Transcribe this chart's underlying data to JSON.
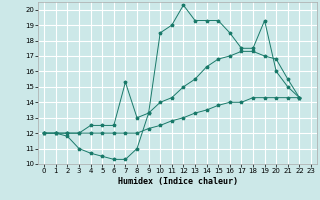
{
  "xlabel": "Humidex (Indice chaleur)",
  "bg_color": "#cce8e8",
  "grid_color": "#ffffff",
  "line_color": "#1a7a6a",
  "xlim": [
    -0.5,
    23.5
  ],
  "ylim": [
    10,
    20.5
  ],
  "xticks": [
    0,
    1,
    2,
    3,
    4,
    5,
    6,
    7,
    8,
    9,
    10,
    11,
    12,
    13,
    14,
    15,
    16,
    17,
    18,
    19,
    20,
    21,
    22,
    23
  ],
  "yticks": [
    10,
    11,
    12,
    13,
    14,
    15,
    16,
    17,
    18,
    19,
    20
  ],
  "line1_x": [
    0,
    1,
    2,
    3,
    4,
    5,
    6,
    7,
    8,
    9,
    10,
    11,
    12,
    13,
    14,
    15,
    16,
    17,
    18,
    19,
    20,
    21,
    22
  ],
  "line1_y": [
    12,
    12,
    11.8,
    11,
    10.7,
    10.5,
    10.3,
    10.3,
    11,
    13.3,
    18.5,
    19,
    20.3,
    19.3,
    19.3,
    19.3,
    18.5,
    17.5,
    17.5,
    19.3,
    16,
    15,
    14.3
  ],
  "line2_x": [
    0,
    1,
    2,
    3,
    4,
    5,
    6,
    7,
    8,
    9,
    10,
    11,
    12,
    13,
    14,
    15,
    16,
    17,
    18,
    19,
    20,
    21,
    22
  ],
  "line2_y": [
    12,
    12,
    12,
    12,
    12.5,
    12.5,
    12.5,
    15.3,
    13,
    13.3,
    14,
    14.3,
    15,
    15.5,
    16.3,
    16.8,
    17,
    17.3,
    17.3,
    17,
    16.8,
    15.5,
    14.3
  ],
  "line3_x": [
    0,
    1,
    2,
    3,
    4,
    5,
    6,
    7,
    8,
    9,
    10,
    11,
    12,
    13,
    14,
    15,
    16,
    17,
    18,
    19,
    20,
    21,
    22
  ],
  "line3_y": [
    12,
    12,
    12,
    12,
    12,
    12,
    12,
    12,
    12,
    12.3,
    12.5,
    12.8,
    13,
    13.3,
    13.5,
    13.8,
    14,
    14,
    14.3,
    14.3,
    14.3,
    14.3,
    14.3
  ]
}
